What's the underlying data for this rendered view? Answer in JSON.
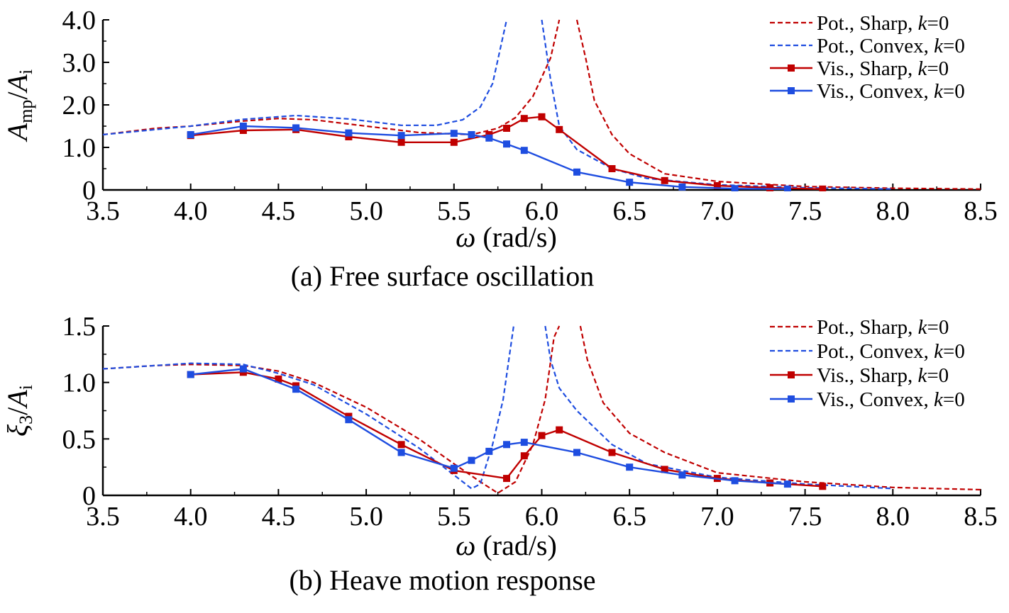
{
  "chart_data": [
    {
      "type": "line",
      "caption": "(a) Free surface oscillation",
      "xlabel": "ω (rad/s)",
      "ylabel": "Amp/Ai",
      "xlim": [
        3.5,
        8.5
      ],
      "ylim": [
        0,
        4.0
      ],
      "xticks": [
        "3.5",
        "4.0",
        "4.5",
        "5.0",
        "5.5",
        "6.0",
        "6.5",
        "7.0",
        "7.5",
        "8.0",
        "8.5"
      ],
      "yticks": [
        "0",
        "1.0",
        "2.0",
        "3.0",
        "4.0"
      ],
      "legend_position": "top-right",
      "series": [
        {
          "name": "Pot., Sharp, k=0",
          "color": "#c00000",
          "style": "dashed",
          "segments": [
            [
              [
                3.5,
                1.3
              ],
              [
                3.8,
                1.45
              ],
              [
                4.0,
                1.5
              ],
              [
                4.3,
                1.62
              ],
              [
                4.5,
                1.68
              ],
              [
                4.7,
                1.65
              ],
              [
                5.0,
                1.5
              ],
              [
                5.3,
                1.35
              ],
              [
                5.6,
                1.3
              ],
              [
                5.75,
                1.45
              ],
              [
                5.85,
                1.7
              ],
              [
                5.95,
                2.2
              ],
              [
                6.05,
                3.1
              ],
              [
                6.1,
                4.0
              ]
            ],
            [
              [
                6.2,
                4.0
              ],
              [
                6.25,
                3.1
              ],
              [
                6.3,
                2.1
              ],
              [
                6.4,
                1.3
              ],
              [
                6.5,
                0.85
              ],
              [
                6.7,
                0.38
              ],
              [
                7.0,
                0.2
              ],
              [
                7.5,
                0.08
              ],
              [
                8.0,
                0.04
              ],
              [
                8.5,
                0.02
              ]
            ]
          ]
        },
        {
          "name": "Pot., Convex, k=0",
          "color": "#1e4de0",
          "style": "dashed",
          "segments": [
            [
              [
                3.5,
                1.3
              ],
              [
                3.8,
                1.42
              ],
              [
                4.0,
                1.5
              ],
              [
                4.3,
                1.66
              ],
              [
                4.6,
                1.75
              ],
              [
                4.9,
                1.67
              ],
              [
                5.2,
                1.52
              ],
              [
                5.4,
                1.52
              ],
              [
                5.55,
                1.65
              ],
              [
                5.65,
                1.95
              ],
              [
                5.72,
                2.5
              ],
              [
                5.8,
                4.0
              ]
            ],
            [
              [
                6.0,
                4.0
              ],
              [
                6.05,
                2.6
              ],
              [
                6.1,
                1.5
              ],
              [
                6.2,
                0.95
              ],
              [
                6.4,
                0.5
              ],
              [
                6.6,
                0.27
              ],
              [
                7.0,
                0.12
              ],
              [
                7.5,
                0.05
              ],
              [
                8.0,
                0.02
              ]
            ]
          ]
        },
        {
          "name": "Vis., Sharp, k=0",
          "color": "#c00000",
          "style": "solid-square",
          "x": [
            4.0,
            4.3,
            4.6,
            4.9,
            5.2,
            5.5,
            5.7,
            5.8,
            5.9,
            6.0,
            6.1,
            6.4,
            6.7,
            7.0,
            7.3,
            7.6
          ],
          "y": [
            1.28,
            1.4,
            1.42,
            1.25,
            1.12,
            1.12,
            1.3,
            1.45,
            1.68,
            1.72,
            1.42,
            0.5,
            0.22,
            0.1,
            0.05,
            0.02
          ]
        },
        {
          "name": "Vis., Convex, k=0",
          "color": "#1e4de0",
          "style": "solid-square",
          "x": [
            4.0,
            4.3,
            4.6,
            4.9,
            5.2,
            5.5,
            5.6,
            5.7,
            5.8,
            5.9,
            6.2,
            6.5,
            6.8,
            7.1,
            7.4
          ],
          "y": [
            1.3,
            1.5,
            1.46,
            1.34,
            1.28,
            1.33,
            1.3,
            1.22,
            1.08,
            0.93,
            0.42,
            0.18,
            0.07,
            0.03,
            0.02
          ]
        }
      ]
    },
    {
      "type": "line",
      "caption": "(b) Heave motion response",
      "xlabel": "ω (rad/s)",
      "ylabel": "ξ3/Ai",
      "xlim": [
        3.5,
        8.5
      ],
      "ylim": [
        0,
        1.5
      ],
      "xticks": [
        "3.5",
        "4.0",
        "4.5",
        "5.0",
        "5.5",
        "6.0",
        "6.5",
        "7.0",
        "7.5",
        "8.0",
        "8.5"
      ],
      "yticks": [
        "0",
        "0.5",
        "1.0",
        "1.5"
      ],
      "legend_position": "top-right",
      "series": [
        {
          "name": "Pot., Sharp, k=0",
          "color": "#c00000",
          "style": "dashed",
          "segments": [
            [
              [
                3.5,
                1.12
              ],
              [
                3.8,
                1.15
              ],
              [
                4.0,
                1.16
              ],
              [
                4.3,
                1.15
              ],
              [
                4.5,
                1.1
              ],
              [
                4.7,
                1.0
              ],
              [
                5.0,
                0.78
              ],
              [
                5.3,
                0.5
              ],
              [
                5.5,
                0.28
              ],
              [
                5.65,
                0.12
              ],
              [
                5.75,
                0.02
              ],
              [
                5.85,
                0.12
              ],
              [
                5.95,
                0.45
              ],
              [
                6.02,
                0.85
              ],
              [
                6.07,
                1.4
              ],
              [
                6.1,
                1.5
              ]
            ],
            [
              [
                6.22,
                1.5
              ],
              [
                6.26,
                1.2
              ],
              [
                6.35,
                0.82
              ],
              [
                6.5,
                0.55
              ],
              [
                6.7,
                0.38
              ],
              [
                7.0,
                0.2
              ],
              [
                7.5,
                0.12
              ],
              [
                8.0,
                0.07
              ],
              [
                8.5,
                0.05
              ]
            ]
          ]
        },
        {
          "name": "Pot., Convex, k=0",
          "color": "#1e4de0",
          "style": "dashed",
          "segments": [
            [
              [
                3.5,
                1.12
              ],
              [
                3.8,
                1.15
              ],
              [
                4.0,
                1.17
              ],
              [
                4.3,
                1.16
              ],
              [
                4.5,
                1.08
              ],
              [
                4.7,
                0.98
              ],
              [
                5.0,
                0.72
              ],
              [
                5.3,
                0.42
              ],
              [
                5.5,
                0.18
              ],
              [
                5.6,
                0.06
              ],
              [
                5.65,
                0.1
              ],
              [
                5.72,
                0.45
              ],
              [
                5.78,
                0.85
              ],
              [
                5.84,
                1.5
              ]
            ],
            [
              [
                6.02,
                1.5
              ],
              [
                6.05,
                1.2
              ],
              [
                6.1,
                0.95
              ],
              [
                6.2,
                0.75
              ],
              [
                6.4,
                0.45
              ],
              [
                6.6,
                0.28
              ],
              [
                7.0,
                0.16
              ],
              [
                7.5,
                0.1
              ],
              [
                8.0,
                0.06
              ]
            ]
          ]
        },
        {
          "name": "Vis., Sharp, k=0",
          "color": "#c00000",
          "style": "solid-square",
          "x": [
            4.0,
            4.3,
            4.5,
            4.6,
            4.9,
            5.2,
            5.5,
            5.8,
            5.9,
            6.0,
            6.1,
            6.4,
            6.7,
            7.0,
            7.3,
            7.6
          ],
          "y": [
            1.07,
            1.09,
            1.03,
            0.97,
            0.7,
            0.45,
            0.22,
            0.15,
            0.35,
            0.53,
            0.58,
            0.38,
            0.23,
            0.15,
            0.11,
            0.08
          ]
        },
        {
          "name": "Vis., Convex, k=0",
          "color": "#1e4de0",
          "style": "solid-square",
          "x": [
            4.0,
            4.3,
            4.6,
            4.9,
            5.2,
            5.5,
            5.6,
            5.7,
            5.8,
            5.9,
            6.2,
            6.5,
            6.8,
            7.1,
            7.4
          ],
          "y": [
            1.07,
            1.12,
            0.94,
            0.67,
            0.38,
            0.24,
            0.31,
            0.39,
            0.45,
            0.47,
            0.38,
            0.25,
            0.18,
            0.13,
            0.1
          ]
        }
      ]
    }
  ]
}
